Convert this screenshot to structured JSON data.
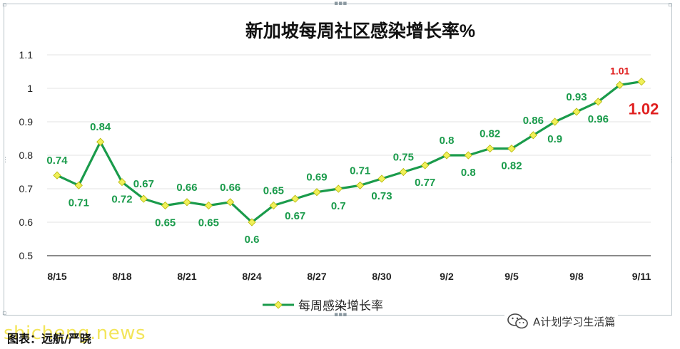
{
  "chart_data": {
    "type": "line",
    "title": "新加坡每周社区感染增长率%",
    "x": [
      "8/15",
      "8/16",
      "8/17",
      "8/18",
      "8/19",
      "8/20",
      "8/21",
      "8/22",
      "8/23",
      "8/24",
      "8/25",
      "8/26",
      "8/27",
      "8/28",
      "8/29",
      "8/30",
      "8/31",
      "9/1",
      "9/2",
      "9/3",
      "9/4",
      "9/5",
      "9/6",
      "9/7",
      "9/8",
      "9/9",
      "9/10",
      "9/11"
    ],
    "tick_labels": [
      "8/15",
      "8/18",
      "8/21",
      "8/24",
      "8/27",
      "8/30",
      "9/2",
      "9/5",
      "9/8",
      "9/11"
    ],
    "series": [
      {
        "name": "每周感染增长率",
        "color": "#1a9b4b",
        "marker_color": "#f0f05a",
        "values": [
          0.74,
          0.71,
          0.84,
          0.72,
          0.67,
          0.65,
          0.66,
          0.65,
          0.66,
          0.6,
          0.65,
          0.67,
          0.69,
          0.7,
          0.71,
          0.73,
          0.75,
          0.77,
          0.8,
          0.8,
          0.82,
          0.82,
          0.86,
          0.9,
          0.93,
          0.96,
          1.01,
          1.02
        ],
        "data_labels": [
          "0.74",
          "0.71",
          "0.84",
          "0.72",
          "0.67",
          "0.65",
          "0.66",
          "0.65",
          "0.66",
          "0.6",
          "0.65",
          "0.67",
          "0.69",
          "0.7",
          "0.71",
          "0.73",
          "0.75",
          "0.77",
          "0.8",
          "0.8",
          "0.82",
          "0.82",
          "0.86",
          "0.9",
          "0.93",
          "0.96",
          "1.01",
          "1.02"
        ]
      }
    ],
    "ylim": [
      0.5,
      1.1
    ],
    "yticks": [
      "0.5",
      "0.6",
      "0.7",
      "0.8",
      "0.9",
      "1",
      "1.1"
    ],
    "xlabel": "",
    "ylabel": "",
    "grid": true,
    "legend": "bottom",
    "label_color": "#1a9b4b",
    "highlight_color": "#e02020"
  },
  "footer": {
    "caption": "图表：远航/严晓",
    "watermark": "shicheng.news",
    "wechat_account": "A计划学习生活篇"
  }
}
